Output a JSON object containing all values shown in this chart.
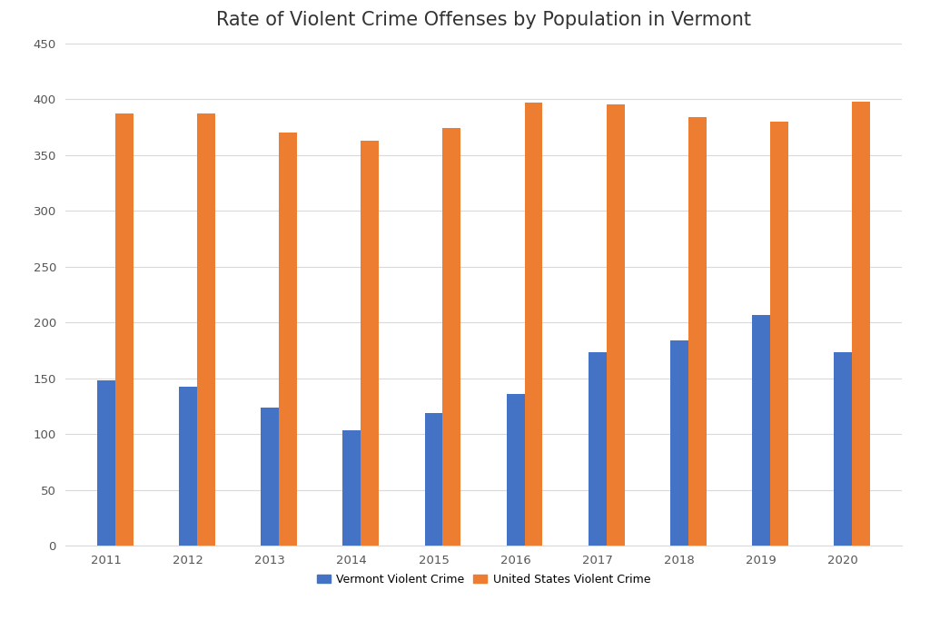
{
  "title": "Rate of Violent Crime Offenses by Population in Vermont",
  "years": [
    2011,
    2012,
    2013,
    2014,
    2015,
    2016,
    2017,
    2018,
    2019,
    2020
  ],
  "vermont_values": [
    148,
    142,
    124,
    103,
    119,
    136,
    173,
    184,
    207,
    173
  ],
  "us_values": [
    387,
    387,
    370,
    363,
    374,
    397,
    395,
    384,
    380,
    398
  ],
  "vermont_color": "#4472C4",
  "us_color": "#ED7D31",
  "vermont_label": "Vermont Violent Crime",
  "us_label": "United States Violent Crime",
  "ylim": [
    0,
    450
  ],
  "yticks": [
    0,
    50,
    100,
    150,
    200,
    250,
    300,
    350,
    400,
    450
  ],
  "background_color": "#FFFFFF",
  "bar_width": 0.22,
  "title_fontsize": 15,
  "tick_fontsize": 9.5,
  "legend_fontsize": 9,
  "grid_color": "#D9D9D9"
}
